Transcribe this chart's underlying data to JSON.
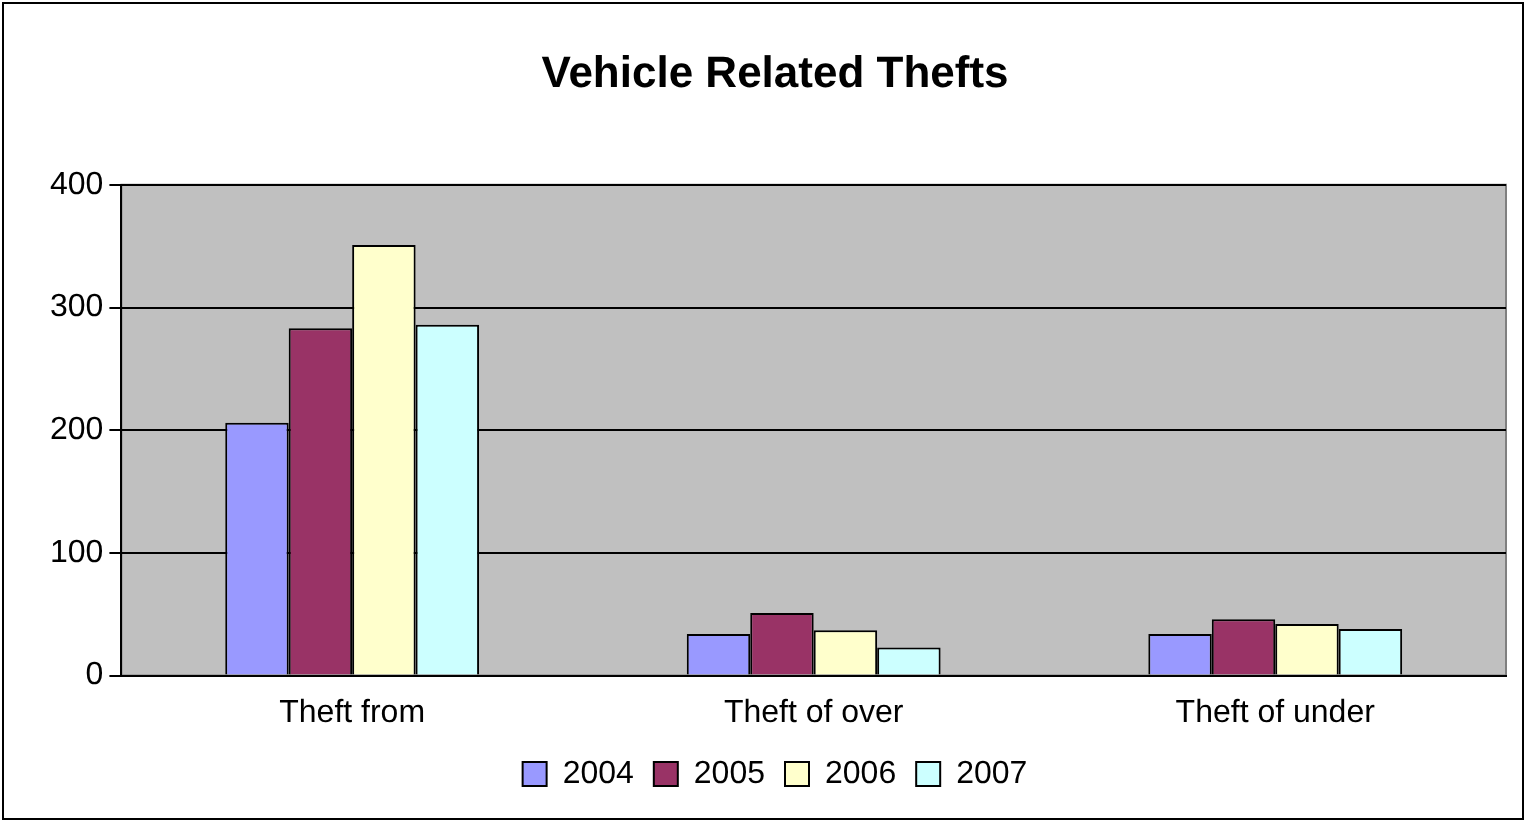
{
  "chart_data": {
    "type": "bar",
    "title": "Vehicle Related Thefts",
    "categories": [
      "Theft from",
      "Theft of over",
      "Theft of under"
    ],
    "series": [
      {
        "name": "2004",
        "color": "#9999ff",
        "values": [
          206,
          34,
          34
        ]
      },
      {
        "name": "2005",
        "color": "#993366",
        "values": [
          283,
          51,
          46
        ]
      },
      {
        "name": "2006",
        "color": "#ffffcc",
        "values": [
          351,
          37,
          42
        ]
      },
      {
        "name": "2007",
        "color": "#ccffff",
        "values": [
          286,
          23,
          38
        ]
      }
    ],
    "ylim": [
      0,
      400
    ],
    "yticks": [
      0,
      100,
      200,
      300,
      400
    ],
    "grid": "y",
    "legend": "bottom"
  }
}
